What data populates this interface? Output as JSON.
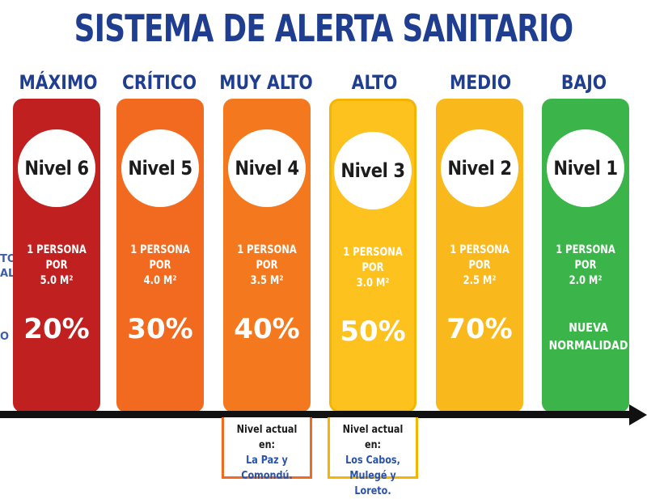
{
  "title": "SISTEMA DE ALERTA SANITARIO",
  "edge_labels": [
    "TO",
    "AL",
    "O"
  ],
  "levels": [
    {
      "name": "MÁXIMO",
      "level": "Nivel 6",
      "capacity": "1 PERSONA POR\n5.0 M²",
      "percent": "20%",
      "color": "#c0201f"
    },
    {
      "name": "CRÍTICO",
      "level": "Nivel 5",
      "capacity": "1 PERSONA POR\n4.0 M²",
      "percent": "30%",
      "color": "#f26a1f"
    },
    {
      "name": "MUY ALTO",
      "level": "Nivel 4",
      "capacity": "1 PERSONA POR\n3.5 M²",
      "percent": "40%",
      "color": "#f4791e"
    },
    {
      "name": "ALTO",
      "level": "Nivel 3",
      "capacity": "1 PERSONA POR\n3.0 M²",
      "percent": "50%",
      "color": "#fdc21e"
    },
    {
      "name": "MEDIO",
      "level": "Nivel 2",
      "capacity": "1 PERSONA POR\n2.5 M²",
      "percent": "70%",
      "color": "#f9b81b"
    },
    {
      "name": "BAJO",
      "level": "Nivel 1",
      "capacity": "1 PERSONA POR\n2.0 M²",
      "percent": "NUEVA\nNORMALIDAD",
      "color": "#3bb54a"
    }
  ],
  "notes": [
    {
      "title": "Nivel actual en:",
      "locations": "La Paz y\nComondú.",
      "border_color": "#f26a1f"
    },
    {
      "title": "Nivel actual en:",
      "locations": "Los Cabos,\nMulegé y Loreto.",
      "border_color": "#f5b400"
    }
  ]
}
